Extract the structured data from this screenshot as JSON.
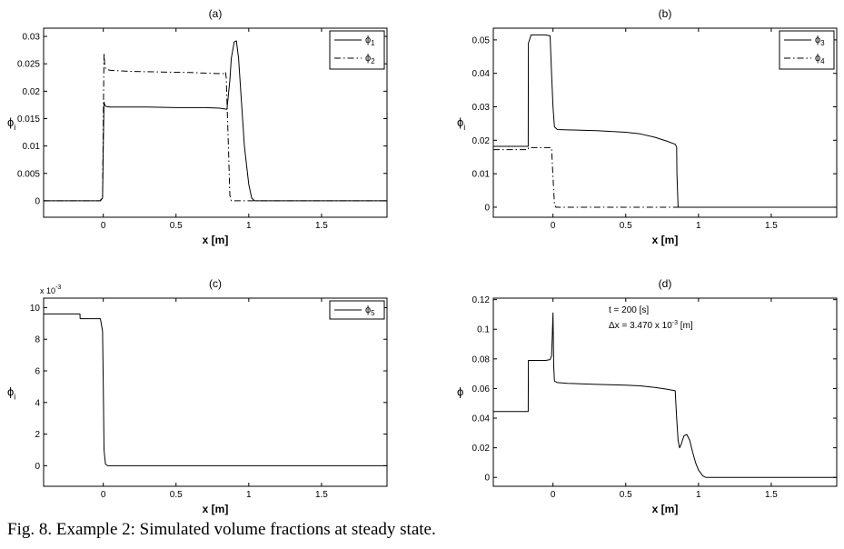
{
  "caption": "Fig. 8. Example 2: Simulated volume fractions at steady state.",
  "chart_data": [
    {
      "type": "line",
      "title": "(a)",
      "xlabel": "x [m]",
      "ylabel": "ϕ",
      "ylabel_sub": "i",
      "xlim": [
        -0.41,
        1.95
      ],
      "ylim": [
        -0.003,
        0.0315
      ],
      "xticks": [
        0,
        0.5,
        1,
        1.5
      ],
      "xtick_labels": [
        "0",
        "0.5",
        "1",
        "1.5"
      ],
      "yticks": [
        0,
        0.005,
        0.01,
        0.015,
        0.02,
        0.025,
        0.03
      ],
      "ytick_labels": [
        "0",
        "0.005",
        "0.01",
        "0.015",
        "0.02",
        "0.025",
        "0.03"
      ],
      "exponent": "",
      "grid": false,
      "legend_position": "top-right",
      "annotations": [],
      "series": [
        {
          "name": "ϕ",
          "name_sub": "1",
          "style": "solid",
          "x": [
            -0.41,
            -0.02,
            -0.005,
            0.0,
            0.005,
            0.01,
            0.02,
            0.05,
            0.1,
            0.3,
            0.5,
            0.7,
            0.8,
            0.85,
            0.87,
            0.88,
            0.9,
            0.915,
            0.93,
            0.95,
            0.97,
            1.0,
            1.02,
            1.04,
            1.1,
            1.95
          ],
          "y": [
            0,
            0,
            0.0005,
            0.01,
            0.018,
            0.0175,
            0.0172,
            0.0171,
            0.0171,
            0.0171,
            0.017,
            0.017,
            0.0169,
            0.0167,
            0.022,
            0.026,
            0.029,
            0.0292,
            0.026,
            0.018,
            0.01,
            0.003,
            0.0005,
            0,
            0,
            0
          ]
        },
        {
          "name": "ϕ",
          "name_sub": "2",
          "style": "dashdot",
          "x": [
            -0.41,
            -0.02,
            -0.005,
            0.0,
            0.005,
            0.01,
            0.02,
            0.05,
            0.2,
            0.4,
            0.6,
            0.8,
            0.83,
            0.84,
            0.845,
            0.86,
            0.87,
            0.88,
            1.95
          ],
          "y": [
            0,
            0,
            0.001,
            0.015,
            0.027,
            0.0245,
            0.024,
            0.0238,
            0.0236,
            0.0235,
            0.0234,
            0.0232,
            0.0232,
            0.0235,
            0.0225,
            0.01,
            0.001,
            0,
            0
          ]
        }
      ]
    },
    {
      "type": "line",
      "title": "(b)",
      "xlabel": "x [m]",
      "ylabel": "ϕ",
      "ylabel_sub": "i",
      "xlim": [
        -0.41,
        1.95
      ],
      "ylim": [
        -0.003,
        0.0535
      ],
      "xticks": [
        0,
        0.5,
        1,
        1.5
      ],
      "xtick_labels": [
        "0",
        "0.5",
        "1",
        "1.5"
      ],
      "yticks": [
        0,
        0.01,
        0.02,
        0.03,
        0.04,
        0.05
      ],
      "ytick_labels": [
        "0",
        "0.01",
        "0.02",
        "0.03",
        "0.04",
        "0.05"
      ],
      "exponent": "",
      "grid": false,
      "legend_position": "top-right",
      "annotations": [],
      "series": [
        {
          "name": "ϕ",
          "name_sub": "3",
          "style": "solid",
          "x": [
            -0.41,
            -0.17,
            -0.169,
            -0.15,
            -0.14,
            -0.1,
            -0.05,
            -0.02,
            -0.01,
            0.0,
            0.01,
            0.03,
            0.1,
            0.3,
            0.5,
            0.6,
            0.7,
            0.78,
            0.84,
            0.85,
            0.852,
            0.86,
            1.95
          ],
          "y": [
            0.0182,
            0.0182,
            0.049,
            0.0515,
            0.0515,
            0.0515,
            0.0515,
            0.0512,
            0.04,
            0.03,
            0.024,
            0.0232,
            0.0231,
            0.0229,
            0.0224,
            0.0219,
            0.0209,
            0.0198,
            0.0188,
            0.018,
            0.01,
            0,
            0
          ]
        },
        {
          "name": "ϕ",
          "name_sub": "4",
          "style": "dashdot",
          "x": [
            -0.41,
            -0.17,
            -0.169,
            -0.1,
            -0.01,
            0.0,
            0.01,
            0.02,
            1.95
          ],
          "y": [
            0.0172,
            0.0172,
            0.0178,
            0.0178,
            0.0178,
            0.009,
            0.001,
            0,
            0
          ]
        }
      ]
    },
    {
      "type": "line",
      "title": "(c)",
      "xlabel": "x [m]",
      "ylabel": "ϕ",
      "ylabel_sub": "i",
      "xlim": [
        -0.41,
        1.95
      ],
      "ylim": [
        -0.0013,
        0.0106
      ],
      "xticks": [
        0,
        0.5,
        1,
        1.5
      ],
      "xtick_labels": [
        "0",
        "0.5",
        "1",
        "1.5"
      ],
      "yticks": [
        0,
        0.002,
        0.004,
        0.006,
        0.008,
        0.01
      ],
      "ytick_labels": [
        "0",
        "2",
        "4",
        "6",
        "8",
        "10"
      ],
      "exponent": "x 10",
      "exponent_sup": "-3",
      "grid": false,
      "legend_position": "top-right",
      "annotations": [],
      "series": [
        {
          "name": "ϕ",
          "name_sub": "5",
          "style": "solid",
          "x": [
            -0.41,
            -0.16,
            -0.159,
            -0.02,
            -0.005,
            0.0,
            0.005,
            0.015,
            0.03,
            1.95
          ],
          "y": [
            0.0096,
            0.0096,
            0.0093,
            0.0093,
            0.0085,
            0.005,
            0.001,
            0.0001,
            0,
            0
          ]
        }
      ]
    },
    {
      "type": "line",
      "title": "(d)",
      "xlabel": "x [m]",
      "ylabel": "ϕ",
      "ylabel_sub": "",
      "xlim": [
        -0.41,
        1.95
      ],
      "ylim": [
        -0.006,
        0.121
      ],
      "xticks": [
        0,
        0.5,
        1,
        1.5
      ],
      "xtick_labels": [
        "0",
        "0.5",
        "1",
        "1.5"
      ],
      "yticks": [
        0,
        0.02,
        0.04,
        0.06,
        0.08,
        0.1,
        0.12
      ],
      "ytick_labels": [
        "0",
        "0.02",
        "0.04",
        "0.06",
        "0.08",
        "0.1",
        "0.12"
      ],
      "exponent": "",
      "grid": false,
      "legend_position": "none",
      "annotations": [
        {
          "text": "t = 200 [s]",
          "sup": "",
          "tail": ""
        },
        {
          "text": "Δx = 3.470 x 10",
          "sup": "-3",
          "tail": " [m]"
        }
      ],
      "series": [
        {
          "name": "",
          "name_sub": "",
          "style": "solid",
          "x": [
            -0.41,
            -0.17,
            -0.169,
            -0.15,
            -0.05,
            -0.02,
            -0.01,
            -0.005,
            0.0,
            0.005,
            0.01,
            0.03,
            0.1,
            0.3,
            0.5,
            0.6,
            0.7,
            0.78,
            0.84,
            0.85,
            0.86,
            0.87,
            0.88,
            0.9,
            0.92,
            0.94,
            0.96,
            0.98,
            1.0,
            1.03,
            1.05,
            1.1,
            1.95
          ],
          "y": [
            0.0445,
            0.0445,
            0.079,
            0.079,
            0.079,
            0.0795,
            0.082,
            0.095,
            0.111,
            0.075,
            0.065,
            0.064,
            0.0635,
            0.0628,
            0.0622,
            0.0618,
            0.0607,
            0.0596,
            0.0585,
            0.04,
            0.025,
            0.02,
            0.022,
            0.028,
            0.029,
            0.025,
            0.017,
            0.01,
            0.005,
            0.001,
            0,
            0,
            0
          ]
        }
      ]
    }
  ]
}
